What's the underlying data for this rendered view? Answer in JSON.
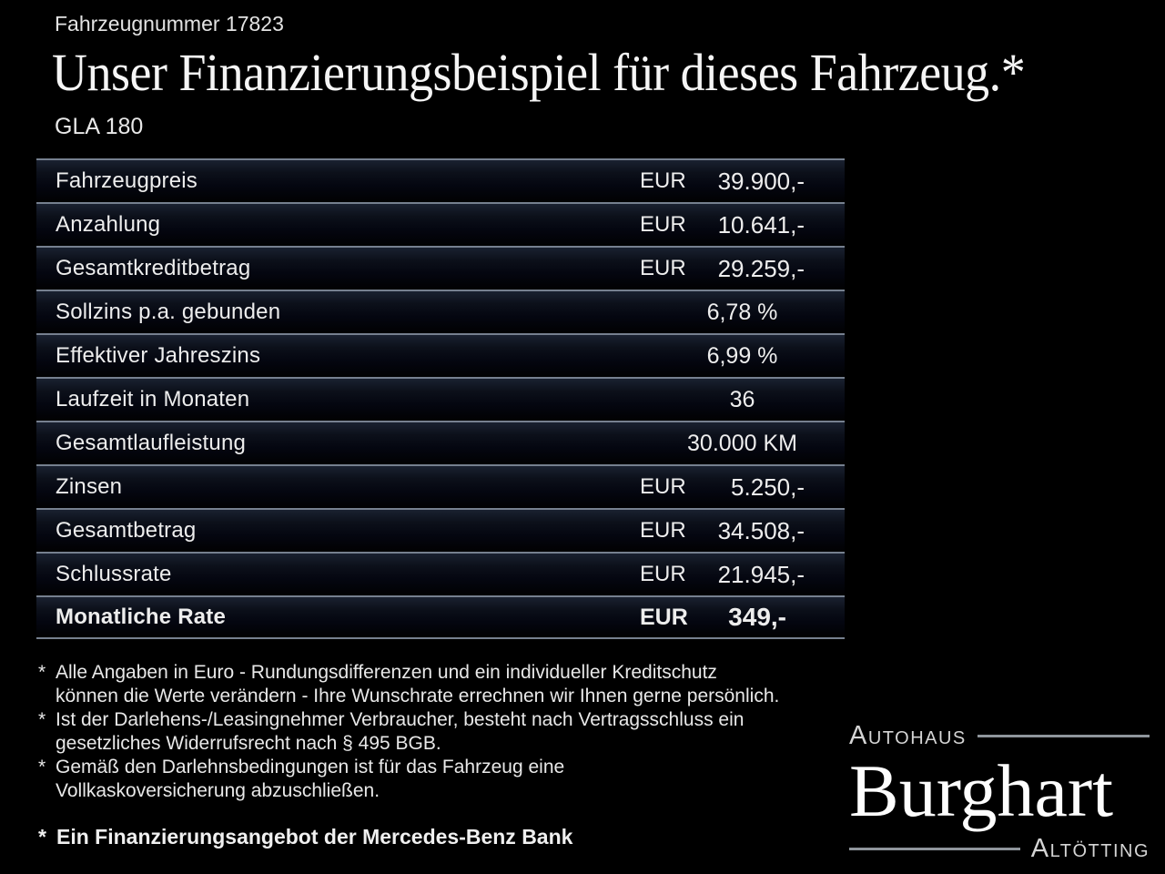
{
  "page": {
    "vehicle_number": "Fahrzeugnummer 17823",
    "headline": "Unser Finanzierungsbeispiel für dieses Fahrzeug.*",
    "model": "GLA 180"
  },
  "finance_table": {
    "rows": [
      {
        "label": "Fahrzeugpreis",
        "currency": "EUR",
        "value": "39.900,-"
      },
      {
        "label": "Anzahlung",
        "currency": "EUR",
        "value": "10.641,-"
      },
      {
        "label": "Gesamtkreditbetrag",
        "currency": "EUR",
        "value": "29.259,-"
      },
      {
        "label": "Sollzins p.a. gebunden",
        "currency": "",
        "value": "6,78 %"
      },
      {
        "label": "Effektiver Jahreszins",
        "currency": "",
        "value": "6,99 %"
      },
      {
        "label": "Laufzeit in Monaten",
        "currency": "",
        "value": "36"
      },
      {
        "label": "Gesamtlaufleistung",
        "currency": "",
        "value": "30.000 KM"
      },
      {
        "label": "Zinsen",
        "currency": "EUR",
        "value": "5.250,-"
      },
      {
        "label": "Gesamtbetrag",
        "currency": "EUR",
        "value": "34.508,-"
      },
      {
        "label": "Schlussrate",
        "currency": "EUR",
        "value": "21.945,-"
      },
      {
        "label": "Monatliche Rate",
        "currency": "EUR",
        "value": "349,-"
      }
    ]
  },
  "footnotes": [
    {
      "marker": "*",
      "lines": [
        "Alle Angaben in Euro - Rundungsdifferenzen und ein individueller Kreditschutz",
        "können die Werte verändern - Ihre Wunschrate errechnen wir Ihnen gerne persönlich."
      ]
    },
    {
      "marker": "*",
      "lines": [
        "Ist der Darlehens-/Leasingnehmer Verbraucher, besteht nach Vertragsschluss ein",
        "gesetzliches Widerrufsrecht nach § 495 BGB."
      ]
    },
    {
      "marker": "*",
      "lines": [
        "Gemäß den Darlehnsbedingungen ist für das Fahrzeug eine",
        "Vollkaskoversicherung abzuschließen."
      ]
    }
  ],
  "finance_note": {
    "marker": "*",
    "text": "Ein Finanzierungsangebot der Mercedes-Benz Bank"
  },
  "dealer_logo": {
    "top": "Autohaus",
    "name": "Burghart",
    "bottom": "Altötting"
  },
  "colors": {
    "background": "#000000",
    "text": "#ededed",
    "separator": "#76808f",
    "row_tint": "#1a2130"
  }
}
